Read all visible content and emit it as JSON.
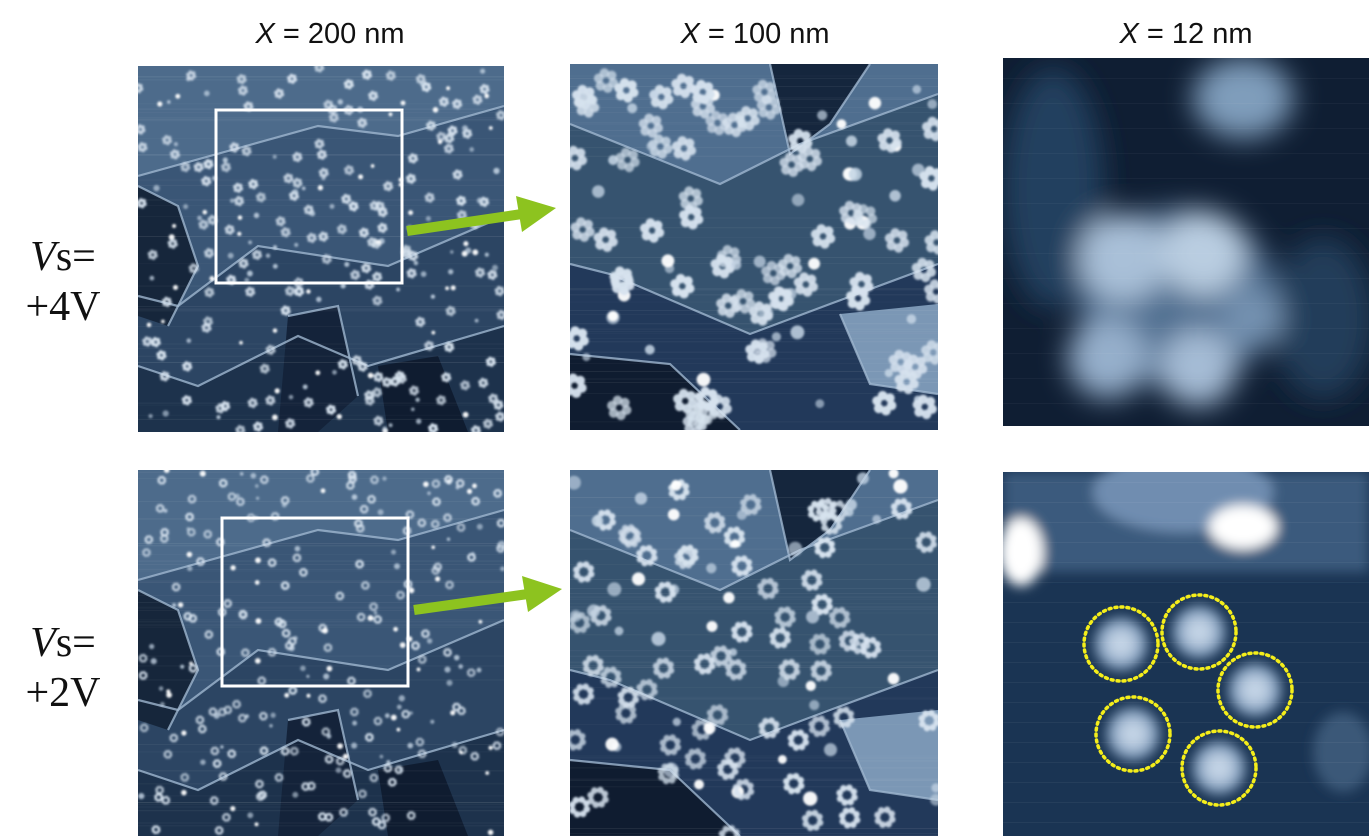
{
  "columns": [
    {
      "variable": "X",
      "rest": " = 200 nm"
    },
    {
      "variable": "X",
      "rest": " = 100 nm"
    },
    {
      "variable": "X",
      "rest": " = 12 nm"
    }
  ],
  "rows": [
    {
      "variable": "V",
      "rest1": "s=",
      "line2": "+4V"
    },
    {
      "variable": "V",
      "rest1": "s=",
      "line2": "+2V"
    }
  ],
  "colors": {
    "arrow": "#8dc31f",
    "highlight_box": "#ffffff",
    "circle": "#f5ee1a",
    "stm_dark": "#0d1a2c",
    "stm_mid": "#5d7c9c",
    "stm_bright": "#e8f0f8"
  }
}
